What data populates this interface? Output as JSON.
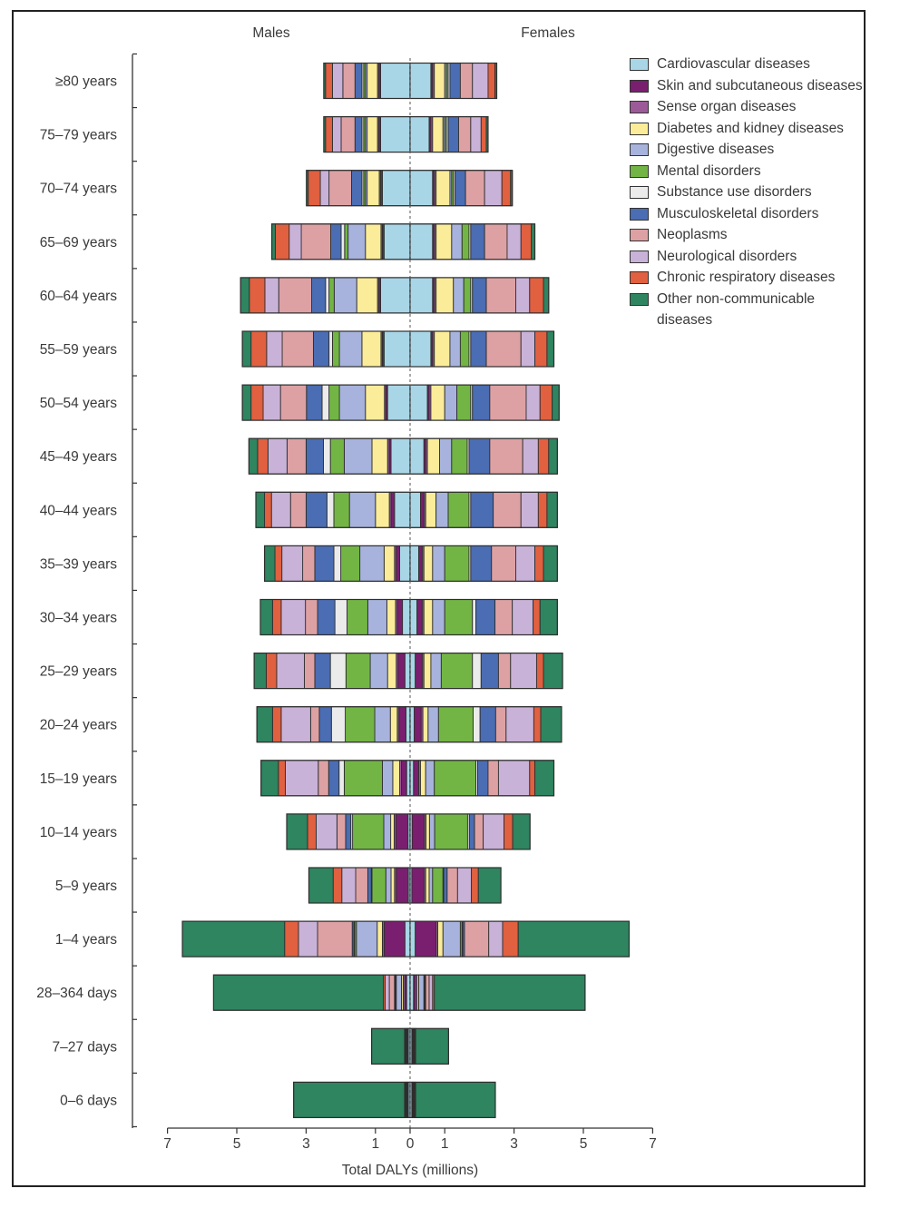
{
  "chart_data": {
    "type": "bar",
    "xlabel": "Total DALYs (millions)",
    "side_labels": [
      "Males",
      "Females"
    ],
    "xlim": [
      -7,
      7
    ],
    "x_ticks": [
      {
        "value": -7,
        "label": "7"
      },
      {
        "value": -5,
        "label": "5"
      },
      {
        "value": -3,
        "label": "3"
      },
      {
        "value": -1,
        "label": "1"
      },
      {
        "value": 0,
        "label": "0"
      },
      {
        "value": 1,
        "label": "1"
      },
      {
        "value": 3,
        "label": "3"
      },
      {
        "value": 5,
        "label": "5"
      },
      {
        "value": 7,
        "label": "7"
      }
    ],
    "categories": [
      "≥80 years",
      "75–79 years",
      "70–74 years",
      "65–69 years",
      "60–64 years",
      "55–59 years",
      "50–54 years",
      "45–49 years",
      "40–44 years",
      "35–39 years",
      "30–34 years",
      "25–29 years",
      "20–24 years",
      "15–19 years",
      "10–14 years",
      "5–9 years",
      "1–4 years",
      "28–364 days",
      "7–27 days",
      "0–6 days"
    ],
    "series": [
      {
        "name": "Cardiovascular diseases",
        "color": "#a8d6e6",
        "male": [
          0.85,
          0.85,
          0.8,
          0.75,
          0.85,
          0.75,
          0.65,
          0.55,
          0.45,
          0.3,
          0.22,
          0.15,
          0.12,
          0.1,
          0.06,
          0.05,
          0.15,
          0.1,
          0.05,
          0.05
        ],
        "female": [
          0.6,
          0.55,
          0.65,
          0.65,
          0.65,
          0.6,
          0.5,
          0.4,
          0.3,
          0.25,
          0.2,
          0.15,
          0.12,
          0.1,
          0.06,
          0.05,
          0.15,
          0.1,
          0.05,
          0.05
        ]
      },
      {
        "name": "Skin and subcutaneous diseases",
        "color": "#7a1f6f",
        "male": [
          0.05,
          0.05,
          0.05,
          0.05,
          0.05,
          0.05,
          0.05,
          0.05,
          0.1,
          0.1,
          0.15,
          0.2,
          0.2,
          0.15,
          0.35,
          0.35,
          0.6,
          0.05,
          0.02,
          0.02
        ],
        "female": [
          0.05,
          0.05,
          0.05,
          0.05,
          0.05,
          0.05,
          0.05,
          0.05,
          0.1,
          0.1,
          0.15,
          0.2,
          0.2,
          0.15,
          0.35,
          0.35,
          0.6,
          0.05,
          0.02,
          0.02
        ]
      },
      {
        "name": "Sense organ diseases",
        "color": "#9c5b98",
        "male": [
          0.04,
          0.04,
          0.04,
          0.04,
          0.04,
          0.04,
          0.04,
          0.05,
          0.05,
          0.05,
          0.05,
          0.05,
          0.05,
          0.05,
          0.05,
          0.05,
          0.05,
          0.05,
          0.01,
          0.01
        ],
        "female": [
          0.05,
          0.05,
          0.05,
          0.05,
          0.05,
          0.05,
          0.05,
          0.05,
          0.05,
          0.05,
          0.05,
          0.05,
          0.05,
          0.05,
          0.05,
          0.05,
          0.05,
          0.05,
          0.01,
          0.01
        ]
      },
      {
        "name": "Diabetes and kidney diseases",
        "color": "#fbec99",
        "male": [
          0.3,
          0.3,
          0.35,
          0.45,
          0.6,
          0.55,
          0.55,
          0.45,
          0.4,
          0.3,
          0.25,
          0.25,
          0.2,
          0.2,
          0.1,
          0.1,
          0.15,
          0.05,
          0.01,
          0.01
        ],
        "female": [
          0.3,
          0.3,
          0.4,
          0.45,
          0.5,
          0.45,
          0.4,
          0.35,
          0.3,
          0.25,
          0.25,
          0.2,
          0.15,
          0.15,
          0.1,
          0.1,
          0.15,
          0.05,
          0.01,
          0.01
        ]
      },
      {
        "name": "Digestive diseases",
        "color": "#a7b3dc",
        "male": [
          0.05,
          0.05,
          0.05,
          0.5,
          0.65,
          0.65,
          0.75,
          0.8,
          0.75,
          0.7,
          0.55,
          0.5,
          0.45,
          0.3,
          0.2,
          0.15,
          0.6,
          0.15,
          0.02,
          0.02
        ],
        "female": [
          0.05,
          0.05,
          0.05,
          0.3,
          0.3,
          0.3,
          0.35,
          0.35,
          0.35,
          0.35,
          0.35,
          0.3,
          0.3,
          0.25,
          0.15,
          0.1,
          0.5,
          0.15,
          0.02,
          0.02
        ]
      },
      {
        "name": "Mental disorders",
        "color": "#72b545",
        "male": [
          0.05,
          0.05,
          0.05,
          0.1,
          0.15,
          0.2,
          0.3,
          0.4,
          0.45,
          0.55,
          0.6,
          0.7,
          0.85,
          1.1,
          0.9,
          0.4,
          0.05,
          0.02,
          0.0,
          0.0
        ],
        "female": [
          0.05,
          0.05,
          0.05,
          0.2,
          0.2,
          0.25,
          0.4,
          0.45,
          0.6,
          0.7,
          0.8,
          0.9,
          1.0,
          1.2,
          0.95,
          0.3,
          0.05,
          0.02,
          0.0,
          0.0
        ]
      },
      {
        "name": "Substance use disorders",
        "color": "#ebebeb",
        "male": [
          0.05,
          0.05,
          0.05,
          0.1,
          0.1,
          0.1,
          0.2,
          0.2,
          0.2,
          0.2,
          0.35,
          0.45,
          0.4,
          0.15,
          0.05,
          0.02,
          0.02,
          0.01,
          0.0,
          0.0
        ],
        "female": [
          0.05,
          0.05,
          0.05,
          0.05,
          0.05,
          0.05,
          0.05,
          0.05,
          0.05,
          0.05,
          0.1,
          0.25,
          0.2,
          0.05,
          0.05,
          0.02,
          0.02,
          0.01,
          0.0,
          0.0
        ]
      },
      {
        "name": "Musculoskeletal disorders",
        "color": "#4a6db3",
        "male": [
          0.2,
          0.2,
          0.3,
          0.3,
          0.4,
          0.45,
          0.45,
          0.5,
          0.6,
          0.55,
          0.5,
          0.45,
          0.35,
          0.3,
          0.15,
          0.1,
          0.05,
          0.02,
          0.0,
          0.0
        ],
        "female": [
          0.3,
          0.3,
          0.3,
          0.4,
          0.4,
          0.45,
          0.5,
          0.6,
          0.65,
          0.6,
          0.55,
          0.5,
          0.45,
          0.3,
          0.15,
          0.1,
          0.05,
          0.02,
          0.0,
          0.0
        ]
      },
      {
        "name": "Neoplasms",
        "color": "#dda1a4",
        "male": [
          0.35,
          0.4,
          0.65,
          0.85,
          0.95,
          0.9,
          0.75,
          0.55,
          0.45,
          0.35,
          0.35,
          0.3,
          0.25,
          0.3,
          0.25,
          0.35,
          1.0,
          0.15,
          0.02,
          0.02
        ],
        "female": [
          0.35,
          0.35,
          0.55,
          0.65,
          0.85,
          1.0,
          1.05,
          0.95,
          0.8,
          0.7,
          0.5,
          0.35,
          0.3,
          0.3,
          0.25,
          0.3,
          0.7,
          0.1,
          0.02,
          0.02
        ]
      },
      {
        "name": "Neurological disorders",
        "color": "#c9b2d8",
        "male": [
          0.3,
          0.25,
          0.25,
          0.35,
          0.4,
          0.45,
          0.5,
          0.55,
          0.55,
          0.6,
          0.7,
          0.8,
          0.85,
          0.95,
          0.6,
          0.4,
          0.55,
          0.12,
          0.02,
          0.02
        ],
        "female": [
          0.45,
          0.3,
          0.5,
          0.4,
          0.4,
          0.4,
          0.4,
          0.45,
          0.5,
          0.55,
          0.6,
          0.75,
          0.8,
          0.9,
          0.6,
          0.4,
          0.4,
          0.1,
          0.02,
          0.02
        ]
      },
      {
        "name": "Chronic respiratory diseases",
        "color": "#e06040",
        "male": [
          0.2,
          0.2,
          0.35,
          0.4,
          0.45,
          0.45,
          0.35,
          0.3,
          0.2,
          0.2,
          0.25,
          0.3,
          0.25,
          0.2,
          0.25,
          0.25,
          0.4,
          0.05,
          0.01,
          0.01
        ],
        "female": [
          0.2,
          0.15,
          0.25,
          0.3,
          0.4,
          0.35,
          0.35,
          0.3,
          0.25,
          0.25,
          0.2,
          0.2,
          0.2,
          0.15,
          0.25,
          0.2,
          0.45,
          0.05,
          0.01,
          0.01
        ]
      },
      {
        "name": "Other non-communicable diseases",
        "color": "#2e8560",
        "male": [
          0.05,
          0.05,
          0.05,
          0.1,
          0.25,
          0.25,
          0.25,
          0.25,
          0.25,
          0.3,
          0.35,
          0.35,
          0.45,
          0.5,
          0.6,
          0.7,
          2.95,
          4.9,
          0.95,
          3.2
        ],
        "female": [
          0.05,
          0.05,
          0.05,
          0.1,
          0.15,
          0.2,
          0.2,
          0.25,
          0.3,
          0.4,
          0.5,
          0.55,
          0.6,
          0.55,
          0.5,
          0.65,
          3.2,
          4.35,
          0.95,
          2.3
        ]
      }
    ]
  }
}
